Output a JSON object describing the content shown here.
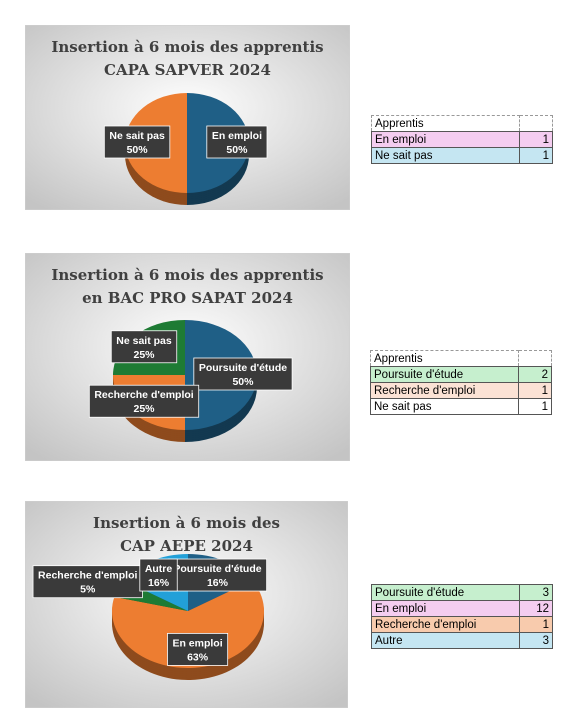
{
  "chart_data": [
    {
      "type": "pie",
      "title": [
        "Insertion à 6 mois des apprentis",
        "CAPA SAPVER 2024"
      ],
      "categories": [
        "En emploi",
        "Ne sait pas"
      ],
      "values": [
        50,
        50
      ],
      "value_labels": [
        "50%",
        "50%"
      ],
      "colors": [
        "#1f5f86",
        "#ed7d31"
      ]
    },
    {
      "type": "pie",
      "title": [
        "Insertion à 6 mois des apprentis",
        "en BAC PRO SAPAT 2024"
      ],
      "categories": [
        "Poursuite d'étude",
        "Recherche d'emploi",
        "Ne sait pas"
      ],
      "values": [
        50,
        25,
        25
      ],
      "value_labels": [
        "50%",
        "25%",
        "25%"
      ],
      "colors": [
        "#1f5f86",
        "#ed7d31",
        "#1e7b34"
      ]
    },
    {
      "type": "pie",
      "title": [
        "Insertion à 6 mois des",
        "CAP AEPE 2024"
      ],
      "categories": [
        "Poursuite d'étude",
        "En emploi",
        "Recherche d'emploi",
        "Autre"
      ],
      "values": [
        16,
        63,
        5,
        16
      ],
      "value_labels": [
        "16%",
        "63%",
        "5%",
        "16%"
      ],
      "colors": [
        "#1f5f86",
        "#ed7d31",
        "#1e7b34",
        "#22a0d8"
      ]
    }
  ],
  "tables": [
    {
      "header": "Apprentis",
      "rows": [
        {
          "label": "En emploi",
          "value": 1,
          "color": "#f4cdf0"
        },
        {
          "label": "Ne sait pas",
          "value": 1,
          "color": "#c5e6f2"
        }
      ]
    },
    {
      "header": "Apprentis",
      "rows": [
        {
          "label": "Poursuite d'étude",
          "value": 2,
          "color": "#c6efce"
        },
        {
          "label": "Recherche d'emploi",
          "value": 1,
          "color": "#fbe2d5"
        },
        {
          "label": "Ne sait pas",
          "value": 1,
          "color": "#ffffff"
        }
      ]
    },
    {
      "rows": [
        {
          "label": "Poursuite d'étude",
          "value": 3,
          "color": "#c6efce"
        },
        {
          "label": "En emploi",
          "value": 12,
          "color": "#f4cdf0"
        },
        {
          "label": "Recherche d'emploi",
          "value": 1,
          "color": "#f8cbad"
        },
        {
          "label": "Autre",
          "value": 3,
          "color": "#c5e6f2"
        }
      ]
    }
  ]
}
